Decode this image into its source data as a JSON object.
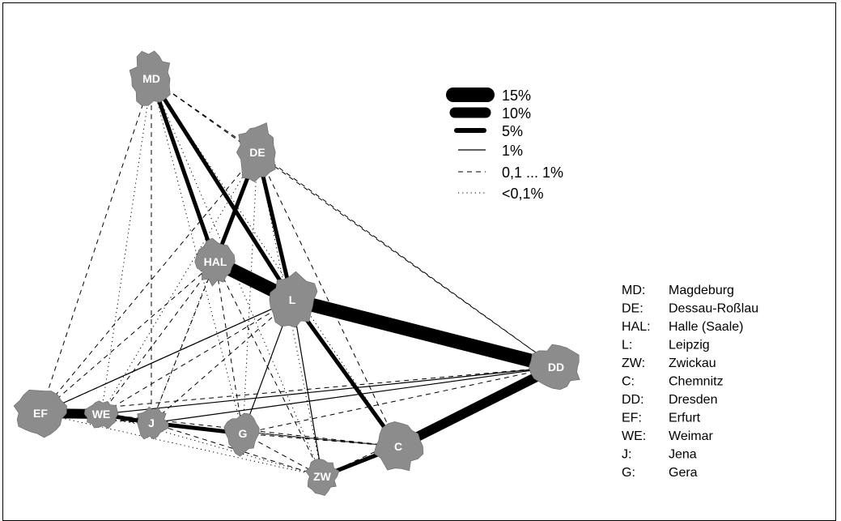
{
  "colors": {
    "city_fill": "#8c8c8c",
    "edge": "#000000",
    "label": "#ffffff"
  },
  "cities": [
    {
      "id": "MD",
      "label": "MD",
      "name": "Magdeburg"
    },
    {
      "id": "DE",
      "label": "DE",
      "name": "Dessau-Roßlau"
    },
    {
      "id": "HAL",
      "label": "HAL",
      "name": "Halle (Saale)"
    },
    {
      "id": "L",
      "label": "L",
      "name": "Leipzig"
    },
    {
      "id": "ZW",
      "label": "ZW",
      "name": "Zwickau"
    },
    {
      "id": "C",
      "label": "C",
      "name": "Chemnitz"
    },
    {
      "id": "DD",
      "label": "DD",
      "name": "Dresden"
    },
    {
      "id": "EF",
      "label": "EF",
      "name": "Erfurt"
    },
    {
      "id": "WE",
      "label": "WE",
      "name": "Weimar"
    },
    {
      "id": "J",
      "label": "J",
      "name": "Jena"
    },
    {
      "id": "G",
      "label": "G",
      "name": "Gera"
    }
  ],
  "legend": [
    {
      "label": "15%",
      "style": "15"
    },
    {
      "label": "10%",
      "style": "10"
    },
    {
      "label": "5%",
      "style": "5"
    },
    {
      "label": "1%",
      "style": "1"
    },
    {
      "label": "0,1 ... 1%",
      "style": "dash"
    },
    {
      "label": "<0,1%",
      "style": "dot"
    }
  ],
  "key": [
    {
      "abbr": "MD:",
      "name": "Magdeburg"
    },
    {
      "abbr": "DE:",
      "name": "Dessau-Roßlau"
    },
    {
      "abbr": "HAL:",
      "name": "Halle (Saale)"
    },
    {
      "abbr": "L:",
      "name": "Leipzig"
    },
    {
      "abbr": "ZW:",
      "name": "Zwickau"
    },
    {
      "abbr": "C:",
      "name": "Chemnitz"
    },
    {
      "abbr": "DD:",
      "name": "Dresden"
    },
    {
      "abbr": "EF:",
      "name": "Erfurt"
    },
    {
      "abbr": "WE:",
      "name": "Weimar"
    },
    {
      "abbr": "J:",
      "name": "Jena"
    },
    {
      "abbr": "G:",
      "name": "Gera"
    }
  ],
  "flows": [
    {
      "from": "HAL",
      "to": "L",
      "share": 15
    },
    {
      "from": "L",
      "to": "DD",
      "share": 15
    },
    {
      "from": "C",
      "to": "DD",
      "share": 10
    },
    {
      "from": "EF",
      "to": "WE",
      "share": 10
    },
    {
      "from": "ZW",
      "to": "C",
      "share": 5
    },
    {
      "from": "WE",
      "to": "J",
      "share": 5
    },
    {
      "from": "J",
      "to": "G",
      "share": 5
    },
    {
      "from": "L",
      "to": "C",
      "share": 5
    },
    {
      "from": "MD",
      "to": "HAL",
      "share": 5
    },
    {
      "from": "MD",
      "to": "L",
      "share": 5
    },
    {
      "from": "DE",
      "to": "HAL",
      "share": 5
    },
    {
      "from": "DE",
      "to": "L",
      "share": 5
    },
    {
      "from": "EF",
      "to": "L",
      "share": 1
    },
    {
      "from": "L",
      "to": "ZW",
      "share": 1
    },
    {
      "from": "L",
      "to": "G",
      "share": 1
    },
    {
      "from": "HAL",
      "to": "DE",
      "share": 1
    },
    {
      "from": "WE",
      "to": "DD",
      "share": 1
    },
    {
      "from": "J",
      "to": "DD",
      "share": 1
    },
    {
      "from": "MD",
      "to": "DD",
      "share": 0.5
    },
    {
      "from": "DE",
      "to": "DD",
      "share": 0.5
    },
    {
      "from": "MD",
      "to": "EF",
      "share": 0.5
    },
    {
      "from": "MD",
      "to": "DE",
      "share": 0.5
    },
    {
      "from": "MD",
      "to": "J",
      "share": 0.5
    },
    {
      "from": "DE",
      "to": "EF",
      "share": 0.5
    },
    {
      "from": "DE",
      "to": "C",
      "share": 0.5
    },
    {
      "from": "HAL",
      "to": "EF",
      "share": 0.5
    },
    {
      "from": "HAL",
      "to": "J",
      "share": 0.5
    },
    {
      "from": "HAL",
      "to": "G",
      "share": 0.5
    },
    {
      "from": "HAL",
      "to": "ZW",
      "share": 0.5
    },
    {
      "from": "HAL",
      "to": "WE",
      "share": 0.5
    },
    {
      "from": "L",
      "to": "EF",
      "share": 0.5
    },
    {
      "from": "L",
      "to": "WE",
      "share": 0.5
    },
    {
      "from": "L",
      "to": "J",
      "share": 0.5
    },
    {
      "from": "EF",
      "to": "DD",
      "share": 0.5
    },
    {
      "from": "EF",
      "to": "J",
      "share": 0.5
    },
    {
      "from": "EF",
      "to": "C",
      "share": 0.5
    },
    {
      "from": "WE",
      "to": "C",
      "share": 0.5
    },
    {
      "from": "J",
      "to": "C",
      "share": 0.5
    },
    {
      "from": "J",
      "to": "ZW",
      "share": 0.5
    },
    {
      "from": "G",
      "to": "DD",
      "share": 0.5
    },
    {
      "from": "G",
      "to": "C",
      "share": 0.5
    },
    {
      "from": "G",
      "to": "ZW",
      "share": 0.5
    },
    {
      "from": "ZW",
      "to": "DD",
      "share": 0.5
    },
    {
      "from": "MD",
      "to": "WE",
      "share": 0.05
    },
    {
      "from": "MD",
      "to": "G",
      "share": 0.05
    },
    {
      "from": "MD",
      "to": "C",
      "share": 0.05
    },
    {
      "from": "MD",
      "to": "ZW",
      "share": 0.05
    },
    {
      "from": "DE",
      "to": "WE",
      "share": 0.05
    },
    {
      "from": "DE",
      "to": "J",
      "share": 0.05
    },
    {
      "from": "DE",
      "to": "G",
      "share": 0.05
    },
    {
      "from": "DE",
      "to": "ZW",
      "share": 0.05
    },
    {
      "from": "EF",
      "to": "G",
      "share": 0.05
    },
    {
      "from": "EF",
      "to": "ZW",
      "share": 0.05
    },
    {
      "from": "WE",
      "to": "G",
      "share": 0.05
    },
    {
      "from": "WE",
      "to": "ZW",
      "share": 0.05
    }
  ]
}
